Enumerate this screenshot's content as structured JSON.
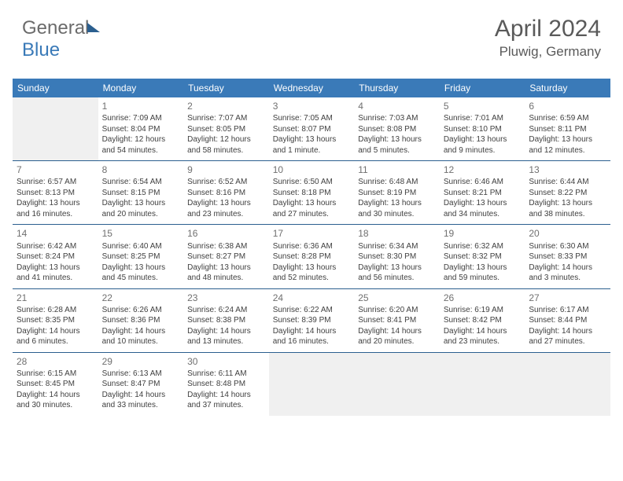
{
  "logo": {
    "part1": "General",
    "part2": "Blue"
  },
  "header": {
    "month": "April 2024",
    "location": "Pluwig, Germany"
  },
  "style": {
    "header_bg": "#3a7ab8",
    "border_color": "#2b5f8f",
    "empty_bg": "#f0f0f0",
    "text_color": "#404040",
    "daynum_color": "#707070",
    "font_day": 10,
    "font_header": 12
  },
  "days_of_week": [
    "Sunday",
    "Monday",
    "Tuesday",
    "Wednesday",
    "Thursday",
    "Friday",
    "Saturday"
  ],
  "weeks": [
    [
      null,
      {
        "n": "1",
        "sr": "Sunrise: 7:09 AM",
        "ss": "Sunset: 8:04 PM",
        "dl1": "Daylight: 12 hours",
        "dl2": "and 54 minutes."
      },
      {
        "n": "2",
        "sr": "Sunrise: 7:07 AM",
        "ss": "Sunset: 8:05 PM",
        "dl1": "Daylight: 12 hours",
        "dl2": "and 58 minutes."
      },
      {
        "n": "3",
        "sr": "Sunrise: 7:05 AM",
        "ss": "Sunset: 8:07 PM",
        "dl1": "Daylight: 13 hours",
        "dl2": "and 1 minute."
      },
      {
        "n": "4",
        "sr": "Sunrise: 7:03 AM",
        "ss": "Sunset: 8:08 PM",
        "dl1": "Daylight: 13 hours",
        "dl2": "and 5 minutes."
      },
      {
        "n": "5",
        "sr": "Sunrise: 7:01 AM",
        "ss": "Sunset: 8:10 PM",
        "dl1": "Daylight: 13 hours",
        "dl2": "and 9 minutes."
      },
      {
        "n": "6",
        "sr": "Sunrise: 6:59 AM",
        "ss": "Sunset: 8:11 PM",
        "dl1": "Daylight: 13 hours",
        "dl2": "and 12 minutes."
      }
    ],
    [
      {
        "n": "7",
        "sr": "Sunrise: 6:57 AM",
        "ss": "Sunset: 8:13 PM",
        "dl1": "Daylight: 13 hours",
        "dl2": "and 16 minutes."
      },
      {
        "n": "8",
        "sr": "Sunrise: 6:54 AM",
        "ss": "Sunset: 8:15 PM",
        "dl1": "Daylight: 13 hours",
        "dl2": "and 20 minutes."
      },
      {
        "n": "9",
        "sr": "Sunrise: 6:52 AM",
        "ss": "Sunset: 8:16 PM",
        "dl1": "Daylight: 13 hours",
        "dl2": "and 23 minutes."
      },
      {
        "n": "10",
        "sr": "Sunrise: 6:50 AM",
        "ss": "Sunset: 8:18 PM",
        "dl1": "Daylight: 13 hours",
        "dl2": "and 27 minutes."
      },
      {
        "n": "11",
        "sr": "Sunrise: 6:48 AM",
        "ss": "Sunset: 8:19 PM",
        "dl1": "Daylight: 13 hours",
        "dl2": "and 30 minutes."
      },
      {
        "n": "12",
        "sr": "Sunrise: 6:46 AM",
        "ss": "Sunset: 8:21 PM",
        "dl1": "Daylight: 13 hours",
        "dl2": "and 34 minutes."
      },
      {
        "n": "13",
        "sr": "Sunrise: 6:44 AM",
        "ss": "Sunset: 8:22 PM",
        "dl1": "Daylight: 13 hours",
        "dl2": "and 38 minutes."
      }
    ],
    [
      {
        "n": "14",
        "sr": "Sunrise: 6:42 AM",
        "ss": "Sunset: 8:24 PM",
        "dl1": "Daylight: 13 hours",
        "dl2": "and 41 minutes."
      },
      {
        "n": "15",
        "sr": "Sunrise: 6:40 AM",
        "ss": "Sunset: 8:25 PM",
        "dl1": "Daylight: 13 hours",
        "dl2": "and 45 minutes."
      },
      {
        "n": "16",
        "sr": "Sunrise: 6:38 AM",
        "ss": "Sunset: 8:27 PM",
        "dl1": "Daylight: 13 hours",
        "dl2": "and 48 minutes."
      },
      {
        "n": "17",
        "sr": "Sunrise: 6:36 AM",
        "ss": "Sunset: 8:28 PM",
        "dl1": "Daylight: 13 hours",
        "dl2": "and 52 minutes."
      },
      {
        "n": "18",
        "sr": "Sunrise: 6:34 AM",
        "ss": "Sunset: 8:30 PM",
        "dl1": "Daylight: 13 hours",
        "dl2": "and 56 minutes."
      },
      {
        "n": "19",
        "sr": "Sunrise: 6:32 AM",
        "ss": "Sunset: 8:32 PM",
        "dl1": "Daylight: 13 hours",
        "dl2": "and 59 minutes."
      },
      {
        "n": "20",
        "sr": "Sunrise: 6:30 AM",
        "ss": "Sunset: 8:33 PM",
        "dl1": "Daylight: 14 hours",
        "dl2": "and 3 minutes."
      }
    ],
    [
      {
        "n": "21",
        "sr": "Sunrise: 6:28 AM",
        "ss": "Sunset: 8:35 PM",
        "dl1": "Daylight: 14 hours",
        "dl2": "and 6 minutes."
      },
      {
        "n": "22",
        "sr": "Sunrise: 6:26 AM",
        "ss": "Sunset: 8:36 PM",
        "dl1": "Daylight: 14 hours",
        "dl2": "and 10 minutes."
      },
      {
        "n": "23",
        "sr": "Sunrise: 6:24 AM",
        "ss": "Sunset: 8:38 PM",
        "dl1": "Daylight: 14 hours",
        "dl2": "and 13 minutes."
      },
      {
        "n": "24",
        "sr": "Sunrise: 6:22 AM",
        "ss": "Sunset: 8:39 PM",
        "dl1": "Daylight: 14 hours",
        "dl2": "and 16 minutes."
      },
      {
        "n": "25",
        "sr": "Sunrise: 6:20 AM",
        "ss": "Sunset: 8:41 PM",
        "dl1": "Daylight: 14 hours",
        "dl2": "and 20 minutes."
      },
      {
        "n": "26",
        "sr": "Sunrise: 6:19 AM",
        "ss": "Sunset: 8:42 PM",
        "dl1": "Daylight: 14 hours",
        "dl2": "and 23 minutes."
      },
      {
        "n": "27",
        "sr": "Sunrise: 6:17 AM",
        "ss": "Sunset: 8:44 PM",
        "dl1": "Daylight: 14 hours",
        "dl2": "and 27 minutes."
      }
    ],
    [
      {
        "n": "28",
        "sr": "Sunrise: 6:15 AM",
        "ss": "Sunset: 8:45 PM",
        "dl1": "Daylight: 14 hours",
        "dl2": "and 30 minutes."
      },
      {
        "n": "29",
        "sr": "Sunrise: 6:13 AM",
        "ss": "Sunset: 8:47 PM",
        "dl1": "Daylight: 14 hours",
        "dl2": "and 33 minutes."
      },
      {
        "n": "30",
        "sr": "Sunrise: 6:11 AM",
        "ss": "Sunset: 8:48 PM",
        "dl1": "Daylight: 14 hours",
        "dl2": "and 37 minutes."
      },
      "trail",
      "trail",
      "trail",
      "trail"
    ]
  ]
}
